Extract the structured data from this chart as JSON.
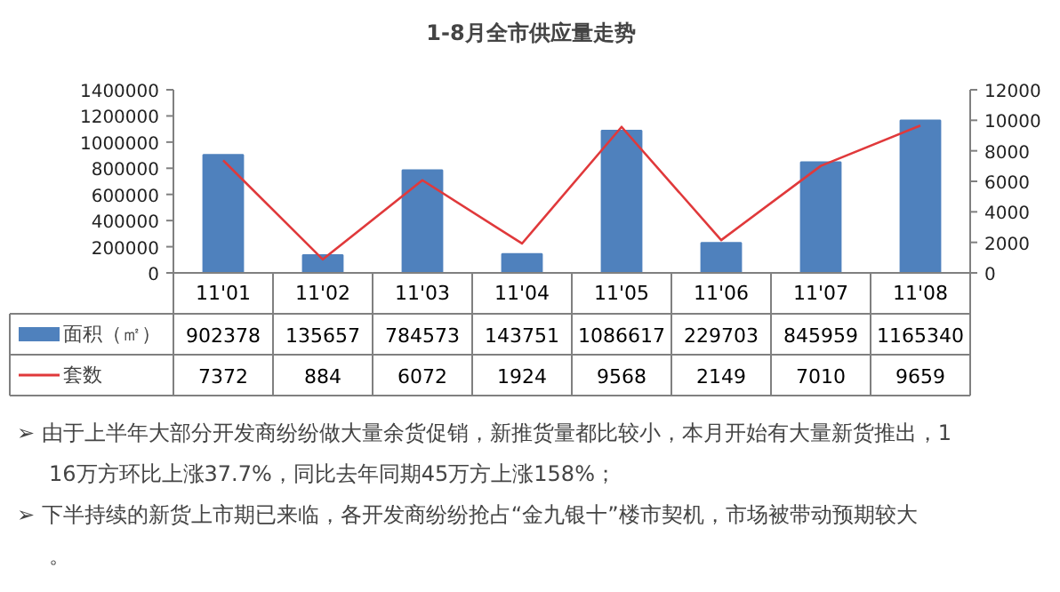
{
  "chart_data": {
    "type": "bar",
    "title": "1-8月全市供应量走势",
    "categories": [
      "11'01",
      "11'02",
      "11'03",
      "11'04",
      "11'05",
      "11'06",
      "11'07",
      "11'08"
    ],
    "series": [
      {
        "name": "面积（㎡）",
        "color": "#4f81bd",
        "values": [
          902378,
          135657,
          784573,
          143751,
          1086617,
          229703,
          845959,
          1165340
        ]
      },
      {
        "name": "套数",
        "type": "line",
        "axis": "y2",
        "color": "#e0393b",
        "values": [
          7372,
          884,
          6072,
          1924,
          9568,
          2149,
          7010,
          9659
        ]
      }
    ],
    "ylim": [
      0,
      1400000
    ],
    "yticks": [
      0,
      200000,
      400000,
      600000,
      800000,
      1000000,
      1200000,
      1400000
    ],
    "y2lim": [
      0,
      12000
    ],
    "y2ticks": [
      0,
      2000,
      4000,
      6000,
      8000,
      10000,
      12000
    ],
    "data_labels": true,
    "legend": "bottom",
    "grid": false,
    "marker": "none",
    "annotations": [
      "➢ 由于上半年大部分开发商纷纷做大量余货促销，新推货量都比较小，本月开始有大量新货推出，116万方环比上涨37.7%，同比去年同期45万方上涨158%；",
      "➢ 下半持续的新货上市期已来临，各开发商纷纷抢占“金九银十”楼市契机，市场被带动预期较大。"
    ]
  }
}
